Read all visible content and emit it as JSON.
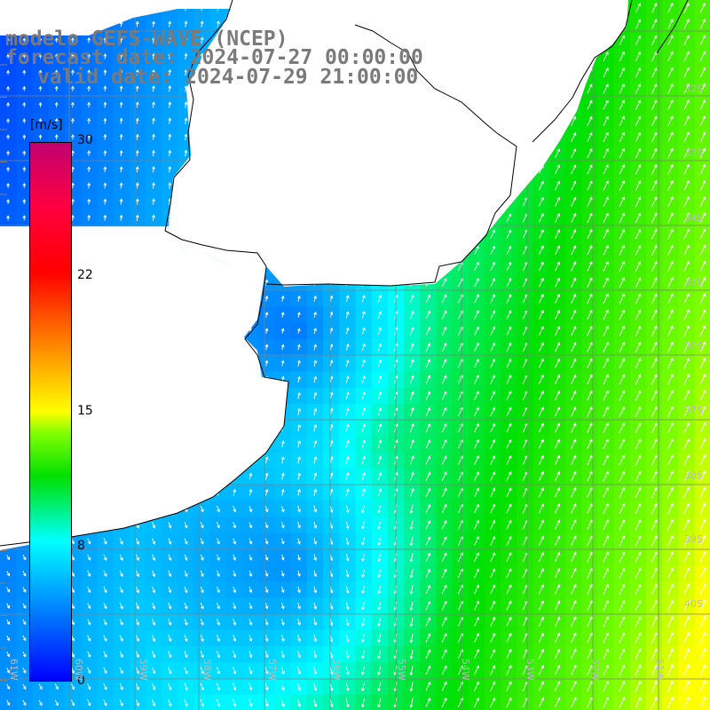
{
  "header": {
    "line1": "modelo GEFS-WAVE (NCEP)",
    "line2": "forecast date: 2024-07-27 00:00:00",
    "line3": "valid date: 2024-07-29 21:00:00"
  },
  "colorbar": {
    "units": "[m/s]",
    "ticks": [
      "30",
      "22",
      "15",
      "8",
      "0"
    ],
    "colors": [
      "#0000ff",
      "#0080ff",
      "#00ffff",
      "#00e000",
      "#ffff00",
      "#ff8000",
      "#ff0000",
      "#c00070"
    ]
  },
  "map": {
    "land_color": "#ffffff",
    "coast_color": "#000000",
    "grid_color": "#808080",
    "arrow_color": "#ffffff",
    "lat_labels": [
      "32S",
      "33S",
      "34S",
      "35S",
      "36S",
      "37S",
      "38S",
      "39S",
      "40S"
    ],
    "lon_labels": [
      "61W",
      "60W",
      "59W",
      "58W",
      "57W",
      "56W",
      "55W",
      "54W",
      "53W",
      "52W",
      "51W"
    ]
  }
}
